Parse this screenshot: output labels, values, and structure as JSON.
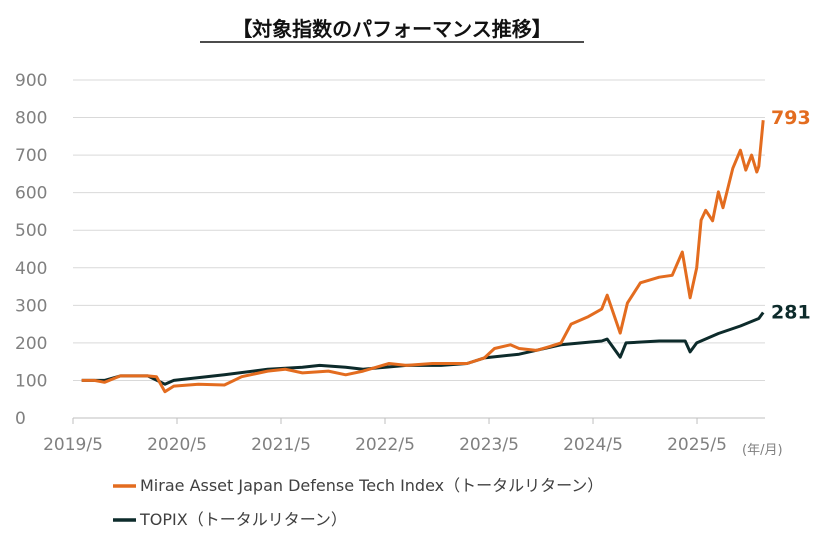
{
  "chart_data": {
    "type": "line",
    "title": "【対象指数のパフォーマンス推移】",
    "xlabel": "(年/月)",
    "ylabel": "",
    "ylim": [
      0,
      900
    ],
    "yticks": [
      "0",
      "100",
      "200",
      "300",
      "400",
      "500",
      "600",
      "700",
      "800",
      "900"
    ],
    "xticks": [
      "2019/5",
      "2020/5",
      "2021/5",
      "2022/5",
      "2023/5",
      "2024/5",
      "2025/5"
    ],
    "grid": true,
    "legend_position": "bottom",
    "colors": {
      "defense": "#e36c1f",
      "topix": "#0d2b2b"
    },
    "series": [
      {
        "name": "Mirae Asset Japan Defense Tech Index（トータルリターン）",
        "end_label": "793",
        "points": [
          [
            "2019-05-31",
            100
          ],
          [
            "2019-07-15",
            100
          ],
          [
            "2019-08-20",
            95
          ],
          [
            "2019-10-15",
            112
          ],
          [
            "2020-01-20",
            112
          ],
          [
            "2020-02-20",
            110
          ],
          [
            "2020-03-19",
            70
          ],
          [
            "2020-04-20",
            85
          ],
          [
            "2020-07-15",
            90
          ],
          [
            "2020-10-15",
            88
          ],
          [
            "2020-12-15",
            110
          ],
          [
            "2021-03-15",
            125
          ],
          [
            "2021-05-15",
            130
          ],
          [
            "2021-07-15",
            120
          ],
          [
            "2021-10-15",
            125
          ],
          [
            "2021-12-15",
            115
          ],
          [
            "2022-02-15",
            125
          ],
          [
            "2022-05-15",
            145
          ],
          [
            "2022-07-15",
            140
          ],
          [
            "2022-10-15",
            145
          ],
          [
            "2023-02-15",
            145
          ],
          [
            "2023-04-15",
            160
          ],
          [
            "2023-05-20",
            185
          ],
          [
            "2023-07-15",
            195
          ],
          [
            "2023-08-15",
            185
          ],
          [
            "2023-10-15",
            180
          ],
          [
            "2023-12-01",
            190
          ],
          [
            "2024-01-10",
            200
          ],
          [
            "2024-02-15",
            250
          ],
          [
            "2024-04-15",
            270
          ],
          [
            "2024-06-01",
            290
          ],
          [
            "2024-06-20",
            327
          ],
          [
            "2024-08-05",
            226
          ],
          [
            "2024-08-30",
            306
          ],
          [
            "2024-10-15",
            360
          ],
          [
            "2024-12-20",
            375
          ],
          [
            "2025-02-05",
            380
          ],
          [
            "2025-03-10",
            442
          ],
          [
            "2025-04-07",
            320
          ],
          [
            "2025-04-30",
            400
          ],
          [
            "2025-05-15",
            527
          ],
          [
            "2025-06-01",
            553
          ],
          [
            "2025-06-25",
            525
          ],
          [
            "2025-07-15",
            602
          ],
          [
            "2025-08-01",
            560
          ],
          [
            "2025-09-05",
            665
          ],
          [
            "2025-10-01",
            713
          ],
          [
            "2025-10-20",
            660
          ],
          [
            "2025-11-10",
            700
          ],
          [
            "2025-11-28",
            655
          ],
          [
            "2025-12-05",
            670
          ],
          [
            "2025-12-20",
            793
          ]
        ]
      },
      {
        "name": "TOPIX（トータルリターン）",
        "end_label": "281",
        "points": [
          [
            "2019-05-31",
            100
          ],
          [
            "2019-08-20",
            100
          ],
          [
            "2019-10-15",
            112
          ],
          [
            "2020-01-20",
            112
          ],
          [
            "2020-03-19",
            90
          ],
          [
            "2020-04-20",
            100
          ],
          [
            "2020-10-15",
            115
          ],
          [
            "2021-03-15",
            130
          ],
          [
            "2021-07-15",
            135
          ],
          [
            "2021-09-15",
            140
          ],
          [
            "2021-12-15",
            135
          ],
          [
            "2022-02-15",
            130
          ],
          [
            "2022-07-15",
            140
          ],
          [
            "2022-11-15",
            140
          ],
          [
            "2023-02-15",
            145
          ],
          [
            "2023-04-15",
            160
          ],
          [
            "2023-08-15",
            170
          ],
          [
            "2024-01-10",
            195
          ],
          [
            "2024-06-01",
            205
          ],
          [
            "2024-06-20",
            210
          ],
          [
            "2024-08-05",
            162
          ],
          [
            "2024-08-25",
            200
          ],
          [
            "2024-12-20",
            205
          ],
          [
            "2025-03-20",
            205
          ],
          [
            "2025-04-07",
            176
          ],
          [
            "2025-04-30",
            200
          ],
          [
            "2025-07-15",
            225
          ],
          [
            "2025-10-01",
            245
          ],
          [
            "2025-12-05",
            265
          ],
          [
            "2025-12-20",
            281
          ]
        ]
      }
    ]
  }
}
